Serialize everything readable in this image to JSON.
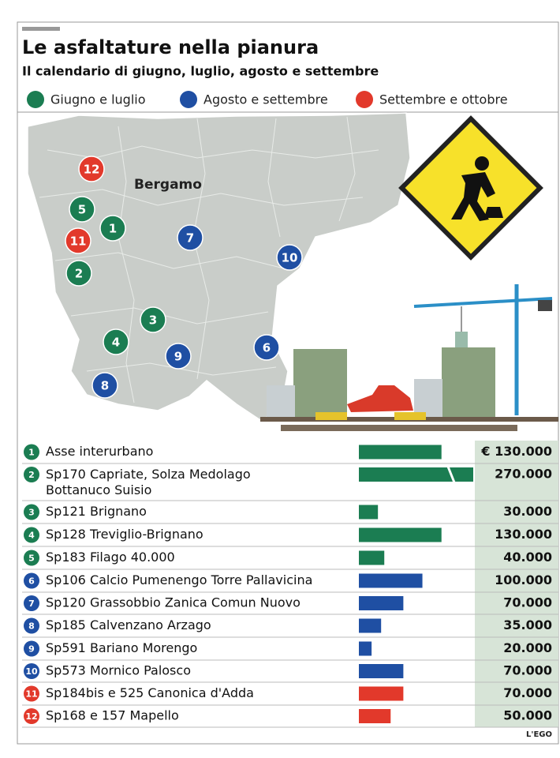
{
  "title": "Le asfaltature nella pianura",
  "subtitle": "Il calendario di giugno, luglio, agosto e settembre",
  "legend": [
    {
      "name": "Giugno e luglio",
      "color": "#1b7d52"
    },
    {
      "name": "Agosto e settembre",
      "color": "#1f4fa3"
    },
    {
      "name": "Settembre e ottobre",
      "color": "#e2392b"
    }
  ],
  "city": "Bergamo",
  "credit": "L'EGO",
  "chart_data": {
    "type": "bar",
    "orientation": "horizontal",
    "numbers": [
      "1",
      "2",
      "3",
      "4",
      "5",
      "6",
      "7",
      "8",
      "9",
      "10",
      "11",
      "12"
    ],
    "categories": [
      "Asse interurbano",
      "Sp170 Capriate, Solza Medolago Bottanuco Suisio",
      "Sp121 Brignano",
      "Sp128 Treviglio-Brignano",
      "Sp183 Filago 40.000",
      "Sp106 Calcio Pumenengo Torre Pallavicina",
      "Sp120 Grassobbio Zanica Comun Nuovo",
      "Sp185 Calvenzano Arzago",
      "Sp591 Bariano Morengo",
      "Sp573 Mornico Palosco",
      "Sp184bis e 525 Canonica d'Adda",
      "Sp168 e 157 Mapello"
    ],
    "groups": [
      0,
      0,
      0,
      0,
      0,
      1,
      1,
      1,
      1,
      1,
      2,
      2
    ],
    "values": [
      130000,
      270000,
      30000,
      130000,
      40000,
      100000,
      70000,
      35000,
      20000,
      70000,
      70000,
      50000
    ],
    "value_labels": [
      "€ 130.000",
      "270.000",
      "30.000",
      "130.000",
      "40.000",
      "100.000",
      "70.000",
      "35.000",
      "20.000",
      "70.000",
      "70.000",
      "50.000"
    ],
    "xlim": [
      0,
      180000
    ]
  }
}
